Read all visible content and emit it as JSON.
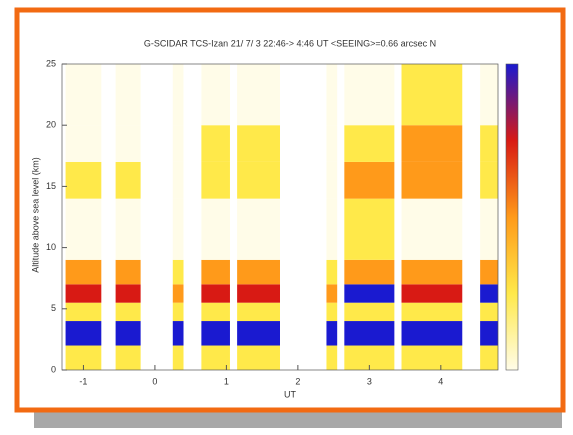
{
  "chart_data": {
    "type": "heatmap",
    "title": "G-SCIDAR    TCS-Izan    21/ 7/ 3 22:46-> 4:46 UT    <SEEING>=0.66 arcsec    N",
    "x_label": "UT",
    "y_label": "Altitude above sea level (km)",
    "x_edges": [
      -1.3,
      -1.25,
      -0.75,
      -0.55,
      -0.2,
      0.25,
      0.4,
      0.65,
      1.05,
      1.15,
      1.75,
      2.4,
      2.55,
      2.65,
      3.35,
      3.45,
      4.3,
      4.55,
      4.8
    ],
    "y_edges": [
      0,
      2,
      4,
      5.5,
      7,
      9,
      14,
      17,
      20,
      25
    ],
    "values": [
      [
        null,
        1,
        null,
        1,
        null,
        1,
        null,
        1,
        null,
        1,
        null,
        1,
        null,
        1,
        null,
        1,
        null,
        1
      ],
      [
        null,
        4,
        null,
        4,
        null,
        4,
        null,
        4,
        null,
        4,
        null,
        4,
        null,
        4,
        null,
        4,
        null,
        4
      ],
      [
        null,
        1,
        null,
        1,
        null,
        1,
        null,
        1,
        null,
        1,
        null,
        1,
        null,
        1,
        null,
        1,
        null,
        1
      ],
      [
        null,
        3,
        null,
        3,
        null,
        2,
        null,
        3,
        null,
        3,
        null,
        2,
        null,
        4,
        null,
        3,
        null,
        4
      ],
      [
        null,
        2,
        null,
        2,
        null,
        1,
        null,
        2,
        null,
        2,
        null,
        1,
        null,
        2,
        null,
        2,
        null,
        2
      ],
      [
        null,
        0,
        null,
        0,
        null,
        0,
        null,
        0,
        null,
        0,
        null,
        0,
        null,
        1,
        null,
        0,
        null,
        0
      ],
      [
        null,
        1,
        null,
        1,
        null,
        0,
        null,
        1,
        null,
        1,
        null,
        0,
        null,
        2,
        null,
        2,
        null,
        1
      ],
      [
        null,
        0,
        null,
        0,
        null,
        0,
        null,
        1,
        null,
        1,
        null,
        0,
        null,
        1,
        null,
        2,
        null,
        1
      ],
      [
        null,
        0,
        null,
        0,
        null,
        0,
        null,
        0,
        null,
        0,
        null,
        0,
        null,
        0,
        null,
        1,
        null,
        0
      ]
    ],
    "colorscale": [
      "#fffce8",
      "#ffe94a",
      "#ff9a1a",
      "#d81a14",
      "#1a1ad0"
    ],
    "xlim": [
      -1.3,
      4.8
    ],
    "xticks": [
      -1,
      0,
      1,
      2,
      3,
      4
    ],
    "ylim": [
      0,
      25
    ],
    "yticks": [
      0,
      5,
      10,
      15,
      20,
      25
    ]
  }
}
